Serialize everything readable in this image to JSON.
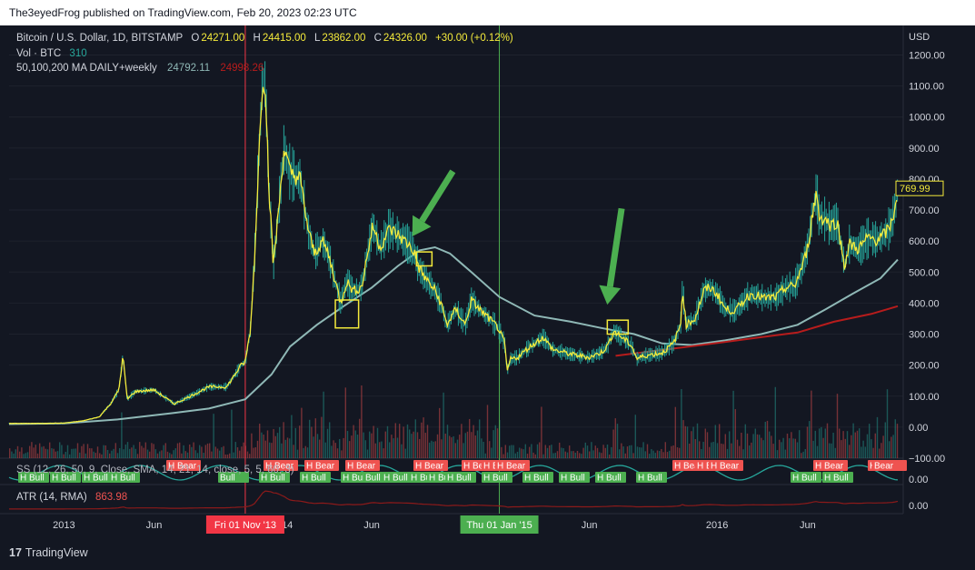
{
  "publisher": "The3eyedFrog published on TradingView.com, Feb 20, 2023 02:23 UTC",
  "legend": {
    "symbol": "Bitcoin / U.S. Dollar, 1D, BITSTAMP",
    "o_label": "O",
    "o_value": "24271.00",
    "h_label": "H",
    "h_value": "24415.00",
    "l_label": "L",
    "l_value": "23862.00",
    "c_label": "C",
    "c_value": "24326.00",
    "change": "+30.00 (+0.12%)",
    "vol_label": "Vol · BTC",
    "vol_value": "310",
    "ma_label": "50,100,200 MA DAILY+weekly",
    "ma_value1": "24792.11",
    "ma_value2": "24998.26",
    "pane2_label": "SS (12, 26, 50, 9, Close, SMA, 14, 21, 14, close, 5, 5, 60, 3)",
    "atr_label": "ATR (14, RMA)",
    "atr_value": "863.98"
  },
  "colors": {
    "background": "#131722",
    "price": "#f5eb3b",
    "wick": "#26a69a",
    "ma_gray": "#8fb8b6",
    "ma_red": "#b71c1c",
    "bull": "#4caf50",
    "bear": "#ef5350",
    "vol_green": "#26a69a",
    "vol_red": "#ef5350",
    "arrow": "#4caf50",
    "box": "#f5eb3b",
    "red_line": "#f23645",
    "green_line": "#4caf50",
    "atr": "#8b1a1a"
  },
  "chart_data": {
    "type": "line",
    "title": "Bitcoin / U.S. Dollar, 1D, BITSTAMP",
    "currency": "USD",
    "ylim": [
      -100,
      1260
    ],
    "yticks": [
      "1200.00",
      "1100.00",
      "1000.00",
      "900.00",
      "800.00",
      "700.00",
      "600.00",
      "500.00",
      "400.00",
      "300.00",
      "200.00",
      "100.00",
      "0.00",
      "−100.00"
    ],
    "ytick_values": [
      1200,
      1100,
      1000,
      900,
      800,
      700,
      600,
      500,
      400,
      300,
      200,
      100,
      0,
      -100
    ],
    "xlim": [
      "2012-10-01",
      "2016-10-30"
    ],
    "x_labels": [
      {
        "date": "2013-01-01",
        "label": "2013"
      },
      {
        "date": "2013-06-01",
        "label": "Jun"
      },
      {
        "date": "2014-01-01",
        "label": "2014"
      },
      {
        "date": "2014-06-01",
        "label": "Jun"
      },
      {
        "date": "2015-06-01",
        "label": "Jun"
      },
      {
        "date": "2016-01-01",
        "label": "2016"
      },
      {
        "date": "2016-06-01",
        "label": "Jun"
      }
    ],
    "markers": [
      {
        "date": "2013-11-01",
        "label": "Fri 01 Nov '13",
        "color": "#f23645"
      },
      {
        "date": "2015-01-01",
        "label": "Thu 01 Jan '15",
        "color": "#4caf50"
      }
    ],
    "last_price": "769.99",
    "series": [
      {
        "name": "BTC/USD",
        "points": [
          [
            "2012-10-01",
            12
          ],
          [
            "2012-11-15",
            12
          ],
          [
            "2013-01-01",
            13
          ],
          [
            "2013-02-01",
            20
          ],
          [
            "2013-03-01",
            33
          ],
          [
            "2013-03-20",
            75
          ],
          [
            "2013-04-03",
            120
          ],
          [
            "2013-04-10",
            230
          ],
          [
            "2013-04-17",
            90
          ],
          [
            "2013-05-01",
            115
          ],
          [
            "2013-06-01",
            120
          ],
          [
            "2013-07-05",
            75
          ],
          [
            "2013-08-01",
            100
          ],
          [
            "2013-09-01",
            130
          ],
          [
            "2013-10-01",
            130
          ],
          [
            "2013-10-25",
            200
          ],
          [
            "2013-11-01",
            210
          ],
          [
            "2013-11-10",
            320
          ],
          [
            "2013-11-18",
            600
          ],
          [
            "2013-11-22",
            800
          ],
          [
            "2013-11-30",
            1130
          ],
          [
            "2013-12-05",
            1100
          ],
          [
            "2013-12-10",
            800
          ],
          [
            "2013-12-18",
            520
          ],
          [
            "2013-12-25",
            660
          ],
          [
            "2014-01-05",
            900
          ],
          [
            "2014-01-15",
            820
          ],
          [
            "2014-02-01",
            800
          ],
          [
            "2014-02-15",
            630
          ],
          [
            "2014-02-25",
            560
          ],
          [
            "2014-03-10",
            600
          ],
          [
            "2014-03-20",
            560
          ],
          [
            "2014-04-01",
            470
          ],
          [
            "2014-04-10",
            400
          ],
          [
            "2014-04-20",
            470
          ],
          [
            "2014-05-01",
            440
          ],
          [
            "2014-05-15",
            450
          ],
          [
            "2014-05-25",
            560
          ],
          [
            "2014-06-03",
            650
          ],
          [
            "2014-06-15",
            580
          ],
          [
            "2014-07-01",
            640
          ],
          [
            "2014-07-15",
            620
          ],
          [
            "2014-08-01",
            590
          ],
          [
            "2014-08-10",
            570
          ],
          [
            "2014-08-20",
            510
          ],
          [
            "2014-09-01",
            475
          ],
          [
            "2014-09-15",
            440
          ],
          [
            "2014-09-25",
            400
          ],
          [
            "2014-10-05",
            330
          ],
          [
            "2014-10-20",
            380
          ],
          [
            "2014-11-05",
            330
          ],
          [
            "2014-11-15",
            410
          ],
          [
            "2014-12-01",
            375
          ],
          [
            "2014-12-15",
            350
          ],
          [
            "2014-12-30",
            320
          ],
          [
            "2015-01-10",
            270
          ],
          [
            "2015-01-14",
            180
          ],
          [
            "2015-01-20",
            220
          ],
          [
            "2015-02-01",
            225
          ],
          [
            "2015-02-15",
            250
          ],
          [
            "2015-03-01",
            270
          ],
          [
            "2015-03-15",
            290
          ],
          [
            "2015-04-01",
            250
          ],
          [
            "2015-05-01",
            235
          ],
          [
            "2015-06-01",
            225
          ],
          [
            "2015-06-20",
            240
          ],
          [
            "2015-07-01",
            260
          ],
          [
            "2015-07-12",
            310
          ],
          [
            "2015-07-25",
            290
          ],
          [
            "2015-08-10",
            265
          ],
          [
            "2015-08-20",
            220
          ],
          [
            "2015-09-01",
            230
          ],
          [
            "2015-10-01",
            240
          ],
          [
            "2015-10-20",
            270
          ],
          [
            "2015-11-01",
            330
          ],
          [
            "2015-11-04",
            450
          ],
          [
            "2015-11-10",
            330
          ],
          [
            "2015-11-25",
            350
          ],
          [
            "2015-12-10",
            440
          ],
          [
            "2015-12-20",
            450
          ],
          [
            "2016-01-01",
            430
          ],
          [
            "2016-01-15",
            380
          ],
          [
            "2016-02-01",
            375
          ],
          [
            "2016-02-20",
            420
          ],
          [
            "2016-03-01",
            430
          ],
          [
            "2016-03-20",
            415
          ],
          [
            "2016-04-10",
            420
          ],
          [
            "2016-04-25",
            450
          ],
          [
            "2016-05-10",
            455
          ],
          [
            "2016-05-25",
            530
          ],
          [
            "2016-06-01",
            580
          ],
          [
            "2016-06-10",
            700
          ],
          [
            "2016-06-16",
            760
          ],
          [
            "2016-06-20",
            680
          ],
          [
            "2016-07-01",
            670
          ],
          [
            "2016-07-10",
            650
          ],
          [
            "2016-07-20",
            665
          ],
          [
            "2016-08-02",
            520
          ],
          [
            "2016-08-10",
            590
          ],
          [
            "2016-08-25",
            575
          ],
          [
            "2016-09-10",
            610
          ],
          [
            "2016-09-25",
            605
          ],
          [
            "2016-10-05",
            615
          ],
          [
            "2016-10-15",
            640
          ],
          [
            "2016-10-20",
            660
          ],
          [
            "2016-10-25",
            710
          ],
          [
            "2016-10-30",
            770
          ]
        ]
      },
      {
        "name": "MA 200",
        "points": [
          [
            "2012-10-01",
            10
          ],
          [
            "2013-01-01",
            12
          ],
          [
            "2013-04-01",
            25
          ],
          [
            "2013-07-01",
            45
          ],
          [
            "2013-09-01",
            60
          ],
          [
            "2013-11-01",
            90
          ],
          [
            "2013-12-15",
            170
          ],
          [
            "2014-01-15",
            260
          ],
          [
            "2014-03-01",
            330
          ],
          [
            "2014-04-15",
            390
          ],
          [
            "2014-06-01",
            450
          ],
          [
            "2014-07-15",
            520
          ],
          [
            "2014-08-20",
            570
          ],
          [
            "2014-09-15",
            580
          ],
          [
            "2014-10-10",
            560
          ],
          [
            "2014-11-15",
            500
          ],
          [
            "2015-01-01",
            420
          ],
          [
            "2015-03-01",
            360
          ],
          [
            "2015-05-01",
            340
          ],
          [
            "2015-06-20",
            320
          ],
          [
            "2015-08-15",
            300
          ],
          [
            "2015-10-01",
            270
          ],
          [
            "2015-11-20",
            265
          ],
          [
            "2016-01-15",
            280
          ],
          [
            "2016-03-15",
            300
          ],
          [
            "2016-05-15",
            330
          ],
          [
            "2016-07-01",
            380
          ],
          [
            "2016-08-15",
            430
          ],
          [
            "2016-10-01",
            480
          ],
          [
            "2016-10-30",
            540
          ]
        ]
      },
      {
        "name": "MA weekly",
        "points": [
          [
            "2015-07-15",
            230
          ],
          [
            "2015-09-15",
            245
          ],
          [
            "2015-11-15",
            260
          ],
          [
            "2016-01-15",
            275
          ],
          [
            "2016-03-15",
            290
          ],
          [
            "2016-05-15",
            305
          ],
          [
            "2016-07-15",
            340
          ],
          [
            "2016-09-15",
            365
          ],
          [
            "2016-10-30",
            390
          ]
        ]
      }
    ],
    "annotations": {
      "arrows": [
        "down-left arrow near Aug 2014",
        "down-left arrow near Jul 2015"
      ],
      "boxes": [
        {
          "from": "2014-04-01",
          "to": "2014-05-10",
          "y": [
            320,
            410
          ]
        },
        {
          "from": "2014-08-15",
          "to": "2014-09-10",
          "y": [
            520,
            565
          ]
        },
        {
          "from": "2015-07-01",
          "to": "2015-08-05",
          "y": [
            300,
            345
          ]
        }
      ]
    },
    "pane2": {
      "labels_bull": [
        "H Bull",
        "H Bull",
        "H Bull",
        "H Bull",
        "Bull",
        "H Bull",
        "H Bull",
        "H Bull",
        "Bull",
        "H Bull",
        "H Bull",
        "H Bull",
        "H Bull",
        "H Bull",
        "H Bull",
        "H Bull",
        "H Bull",
        "H Bull",
        "H Bull",
        "H Bull"
      ],
      "labels_bear": [
        "H Bear",
        "H Bear",
        "H Bear",
        "H Bear",
        "H Bear",
        "H Bear",
        "H Bear",
        "H Bear",
        "H Bear",
        "H Bear",
        "H Bear",
        "H Bear",
        "H Bear",
        "Bear"
      ],
      "ytick": "0.00"
    },
    "atr": {
      "ytick": "0.00"
    }
  }
}
